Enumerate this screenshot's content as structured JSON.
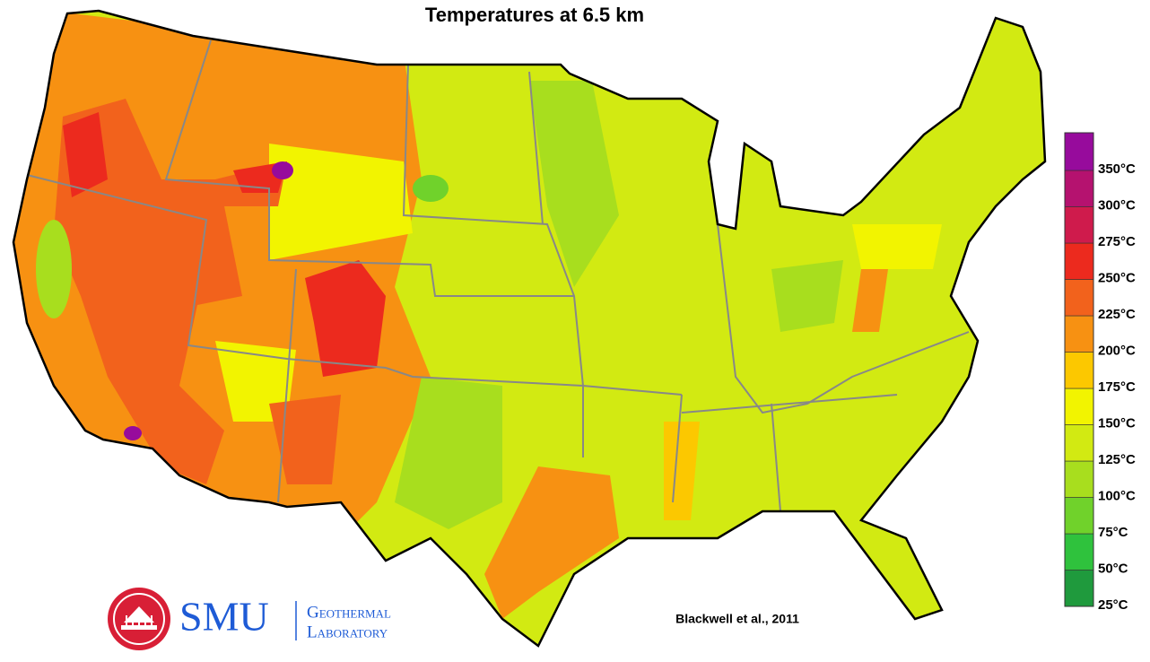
{
  "title": "Temperatures at 6.5 km",
  "legend": {
    "items": [
      {
        "label": "25°C",
        "color": "#1f9a3d"
      },
      {
        "label": "50°C",
        "color": "#2fc23d"
      },
      {
        "label": "75°C",
        "color": "#70d22b"
      },
      {
        "label": "100°C",
        "color": "#a8de1e"
      },
      {
        "label": "125°C",
        "color": "#d2ea12"
      },
      {
        "label": "150°C",
        "color": "#f2f400"
      },
      {
        "label": "175°C",
        "color": "#fcc800"
      },
      {
        "label": "200°C",
        "color": "#f79112"
      },
      {
        "label": "225°C",
        "color": "#f2621c"
      },
      {
        "label": "250°C",
        "color": "#ec2a1e"
      },
      {
        "label": "275°C",
        "color": "#cf1b4c"
      },
      {
        "label": "300°C",
        "color": "#b5126f"
      },
      {
        "label": "350°C",
        "color": "#970b9c"
      }
    ]
  },
  "credit": "Blackwell et al., 2011",
  "logo": {
    "name": "SMU",
    "line1": "Geothermal",
    "line2": "Laboratory"
  }
}
